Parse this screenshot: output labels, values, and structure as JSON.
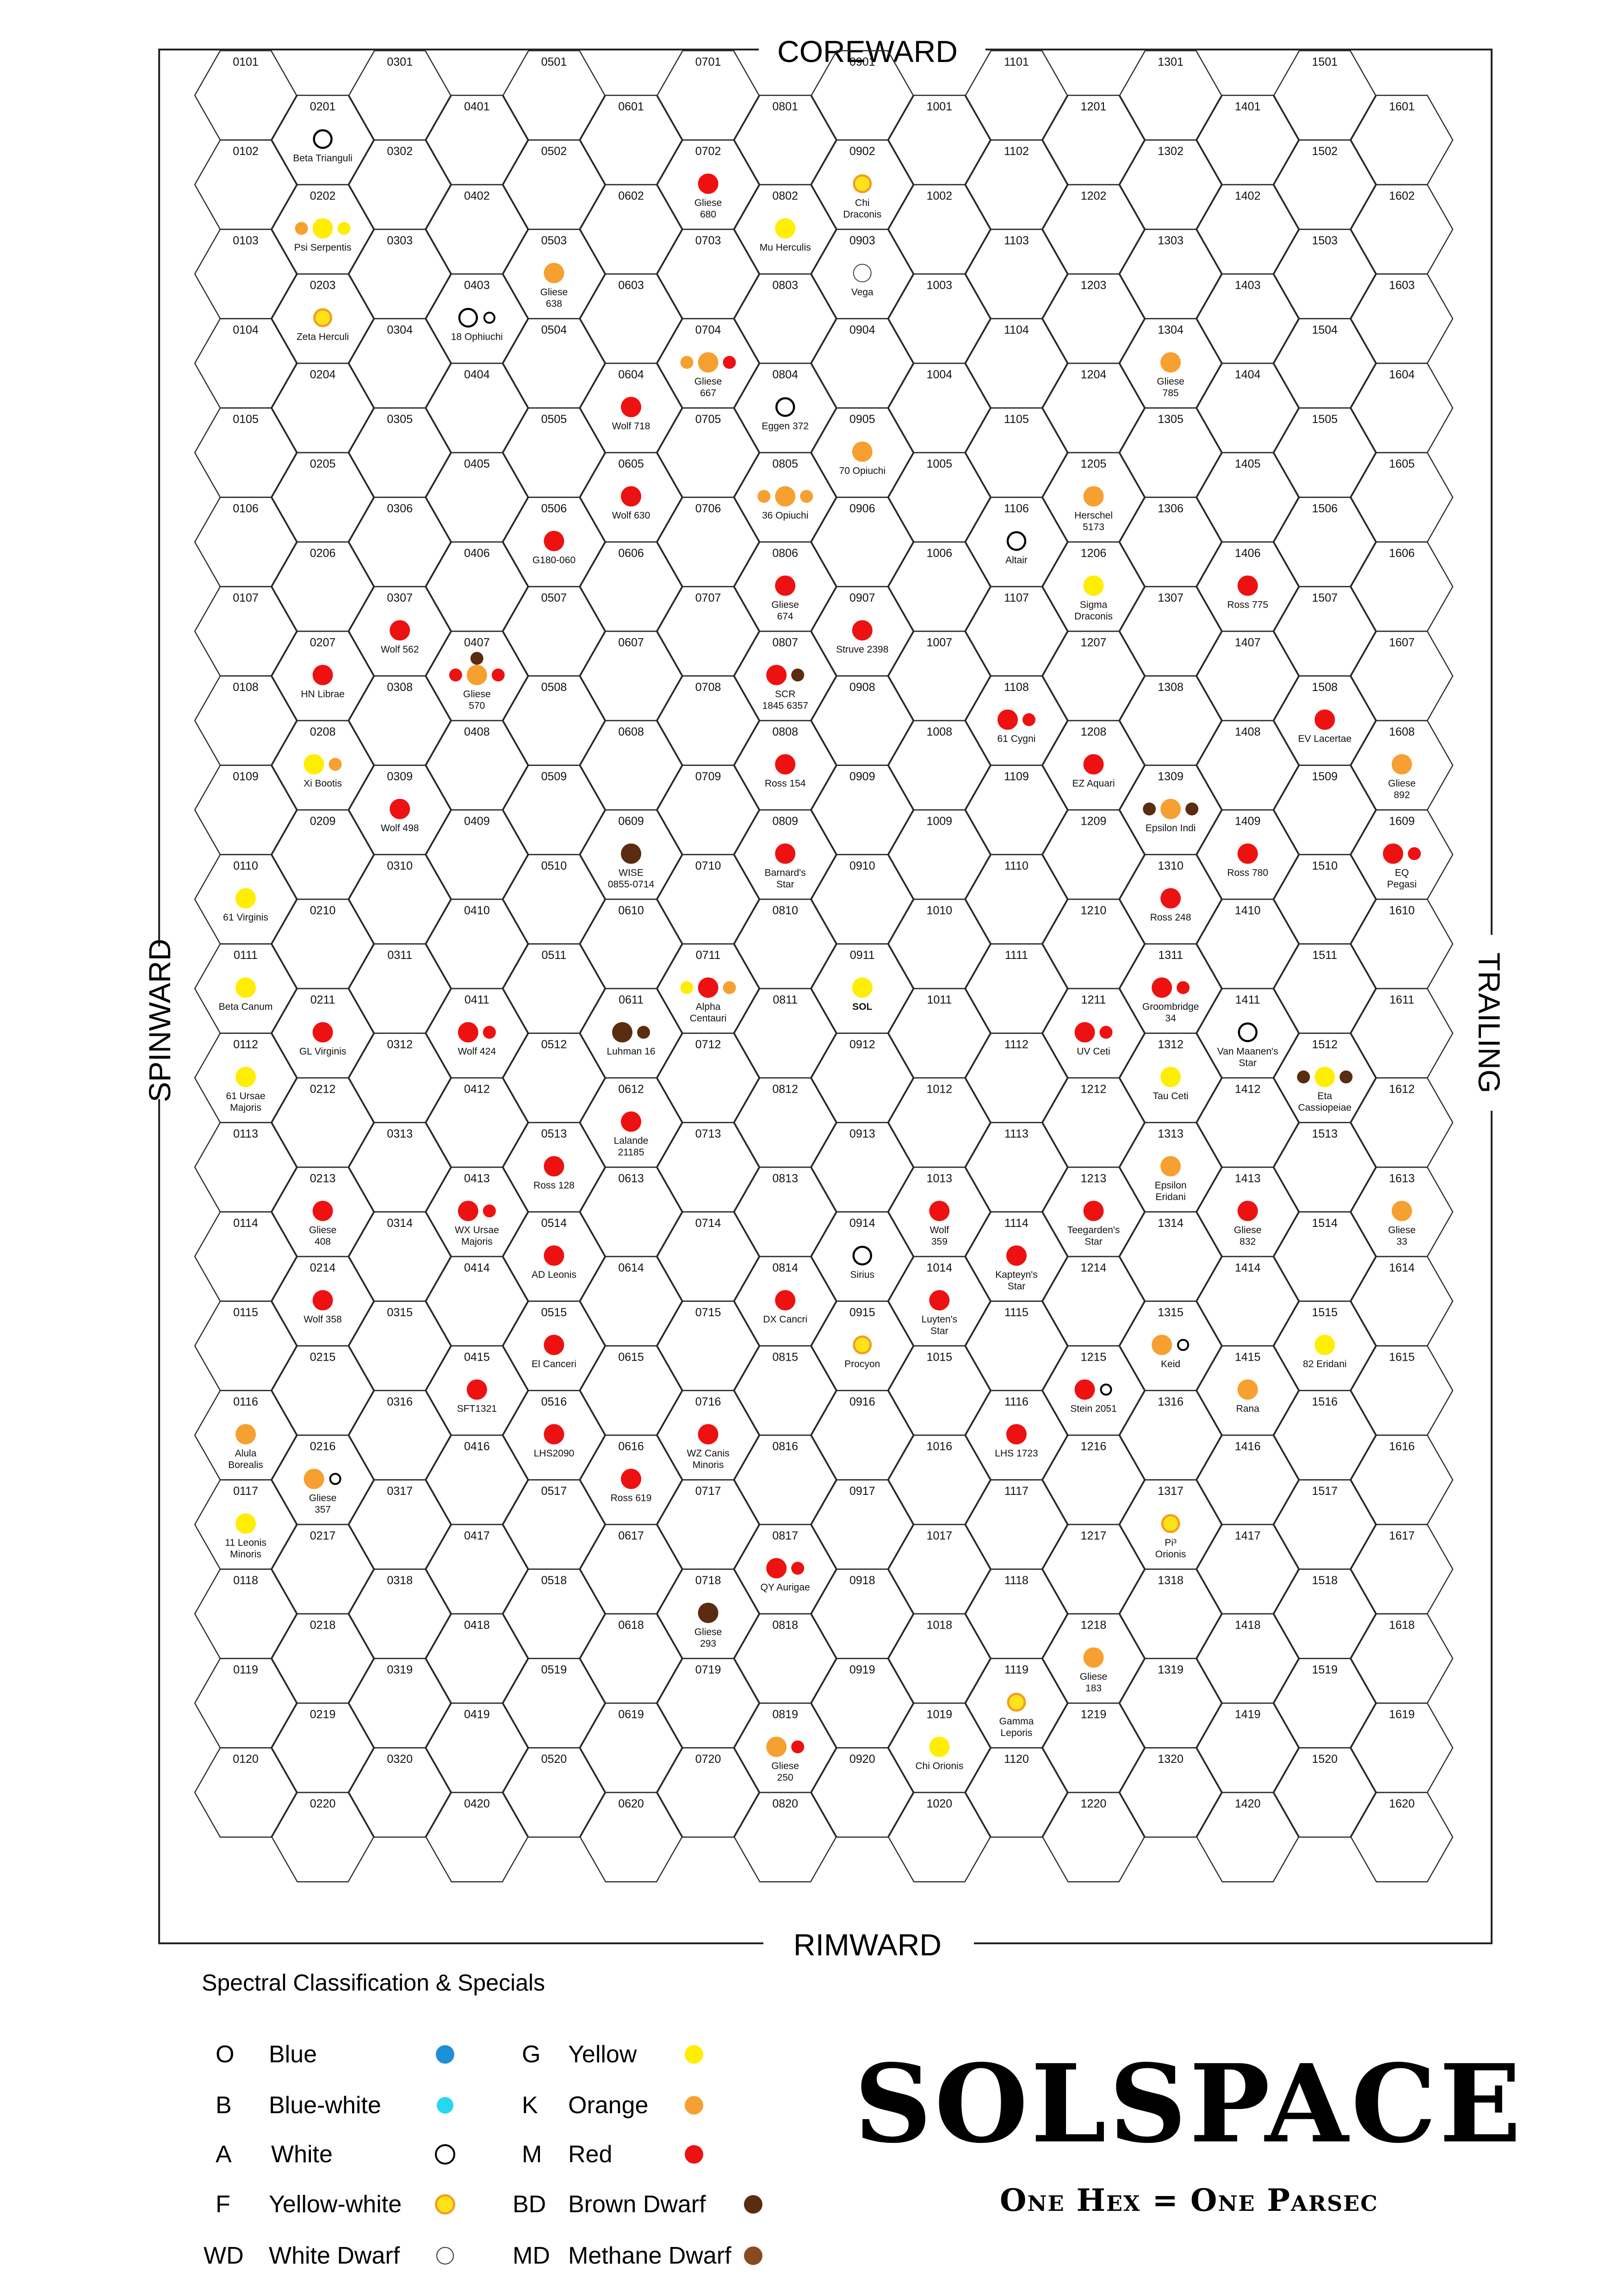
{
  "labels": {
    "coreward": "COREWARD",
    "rimward": "RIMWARD",
    "spinward": "SPINWARD",
    "trailing": "TRAILING"
  },
  "grid": {
    "cols": 16,
    "rows": 20
  },
  "stars": [
    {
      "hex": "0201",
      "name": [
        "Beta Trianguli"
      ],
      "bodies": [
        {
          "k": "A"
        }
      ]
    },
    {
      "hex": "0202",
      "name": [
        "Psi Serpentis"
      ],
      "bodies": [
        {
          "k": "K",
          "s": "s"
        },
        {
          "k": "G"
        },
        {
          "k": "G",
          "s": "s"
        }
      ]
    },
    {
      "hex": "0203",
      "name": [
        "Zeta Herculi"
      ],
      "bodies": [
        {
          "k": "F"
        }
      ]
    },
    {
      "hex": "0403",
      "name": [
        "18 Ophiuchi"
      ],
      "bodies": [
        {
          "k": "A"
        },
        {
          "k": "A",
          "s": "s"
        }
      ]
    },
    {
      "hex": "0503",
      "name": [
        "Gliese",
        "638"
      ],
      "bodies": [
        {
          "k": "K"
        }
      ]
    },
    {
      "hex": "0702",
      "name": [
        "Gliese",
        "680"
      ],
      "bodies": [
        {
          "k": "M"
        }
      ]
    },
    {
      "hex": "0802",
      "name": [
        "Mu Herculis"
      ],
      "bodies": [
        {
          "k": "G"
        }
      ]
    },
    {
      "hex": "0902",
      "name": [
        "Chi",
        "Draconis"
      ],
      "bodies": [
        {
          "k": "F"
        }
      ]
    },
    {
      "hex": "0903",
      "name": [
        "Vega"
      ],
      "bodies": [
        {
          "k": "WD"
        }
      ]
    },
    {
      "hex": "0704",
      "name": [
        "Gliese",
        "667"
      ],
      "bodies": [
        {
          "k": "K",
          "s": "s"
        },
        {
          "k": "K"
        },
        {
          "k": "M",
          "s": "s"
        }
      ]
    },
    {
      "hex": "0604",
      "name": [
        "Wolf 718"
      ],
      "bodies": [
        {
          "k": "M"
        }
      ]
    },
    {
      "hex": "0804",
      "name": [
        "Eggen 372"
      ],
      "bodies": [
        {
          "k": "A"
        }
      ]
    },
    {
      "hex": "0905",
      "name": [
        "70 Opiuchi"
      ],
      "bodies": [
        {
          "k": "K"
        }
      ]
    },
    {
      "hex": "0605",
      "name": [
        "Wolf 630"
      ],
      "bodies": [
        {
          "k": "M"
        }
      ]
    },
    {
      "hex": "0805",
      "name": [
        "36 Opiuchi"
      ],
      "bodies": [
        {
          "k": "K",
          "s": "s"
        },
        {
          "k": "K"
        },
        {
          "k": "K",
          "s": "s"
        }
      ]
    },
    {
      "hex": "0506",
      "name": [
        "G180-060"
      ],
      "bodies": [
        {
          "k": "M"
        }
      ]
    },
    {
      "hex": "0806",
      "name": [
        "Gliese",
        "674"
      ],
      "bodies": [
        {
          "k": "M"
        }
      ]
    },
    {
      "hex": "0907",
      "name": [
        "Struve 2398"
      ],
      "bodies": [
        {
          "k": "M"
        }
      ]
    },
    {
      "hex": "0307",
      "name": [
        "Wolf 562"
      ],
      "bodies": [
        {
          "k": "M"
        }
      ]
    },
    {
      "hex": "0207",
      "name": [
        "HN Librae"
      ],
      "bodies": [
        {
          "k": "M"
        }
      ]
    },
    {
      "hex": "0407",
      "name": [
        "Gliese",
        "570"
      ],
      "bodies": [
        {
          "k": "M",
          "s": "s"
        },
        {
          "k": "K"
        },
        {
          "k": "M",
          "s": "s"
        },
        {
          "k": "BD",
          "s": "s",
          "up": true
        }
      ]
    },
    {
      "hex": "0807",
      "name": [
        "SCR",
        "1845 6357"
      ],
      "bodies": [
        {
          "k": "M"
        },
        {
          "k": "BD",
          "s": "s"
        }
      ]
    },
    {
      "hex": "0208",
      "name": [
        "Xi Bootis"
      ],
      "bodies": [
        {
          "k": "G"
        },
        {
          "k": "K",
          "s": "s"
        }
      ]
    },
    {
      "hex": "0808",
      "name": [
        "Ross 154"
      ],
      "bodies": [
        {
          "k": "M"
        }
      ]
    },
    {
      "hex": "0309",
      "name": [
        "Wolf 498"
      ],
      "bodies": [
        {
          "k": "M"
        }
      ]
    },
    {
      "hex": "0609",
      "name": [
        "WISE",
        "0855-0714"
      ],
      "bodies": [
        {
          "k": "BD"
        }
      ]
    },
    {
      "hex": "0809",
      "name": [
        "Barnard's",
        "Star"
      ],
      "bodies": [
        {
          "k": "M"
        }
      ]
    },
    {
      "hex": "1106",
      "name": [
        "Altair"
      ],
      "bodies": [
        {
          "k": "A"
        }
      ]
    },
    {
      "hex": "1205",
      "name": [
        "Herschel",
        "5173"
      ],
      "bodies": [
        {
          "k": "K"
        }
      ]
    },
    {
      "hex": "1206",
      "name": [
        "Sigma",
        "Draconis"
      ],
      "bodies": [
        {
          "k": "G"
        }
      ]
    },
    {
      "hex": "1304",
      "name": [
        "Gliese",
        "785"
      ],
      "bodies": [
        {
          "k": "K"
        }
      ]
    },
    {
      "hex": "1406",
      "name": [
        "Ross 775"
      ],
      "bodies": [
        {
          "k": "M"
        }
      ]
    },
    {
      "hex": "1108",
      "name": [
        "61 Cygni"
      ],
      "bodies": [
        {
          "k": "M"
        },
        {
          "k": "M",
          "s": "s"
        }
      ]
    },
    {
      "hex": "1208",
      "name": [
        "EZ Aquari"
      ],
      "bodies": [
        {
          "k": "M"
        }
      ]
    },
    {
      "hex": "1309",
      "name": [
        "Epsilon Indi"
      ],
      "bodies": [
        {
          "k": "BD",
          "s": "s"
        },
        {
          "k": "K"
        },
        {
          "k": "BD",
          "s": "s"
        }
      ]
    },
    {
      "hex": "1508",
      "name": [
        "EV Lacertae"
      ],
      "bodies": [
        {
          "k": "M"
        }
      ]
    },
    {
      "hex": "1608",
      "name": [
        "Gliese",
        "892"
      ],
      "bodies": [
        {
          "k": "K"
        }
      ]
    },
    {
      "hex": "1409",
      "name": [
        "Ross 780"
      ],
      "bodies": [
        {
          "k": "M"
        }
      ]
    },
    {
      "hex": "1609",
      "name": [
        "EQ",
        "Pegasi"
      ],
      "bodies": [
        {
          "k": "M"
        },
        {
          "k": "M",
          "s": "s"
        }
      ]
    },
    {
      "hex": "1310",
      "name": [
        "Ross 248"
      ],
      "bodies": [
        {
          "k": "M"
        }
      ]
    },
    {
      "hex": "0110",
      "name": [
        "61 Virginis"
      ],
      "bodies": [
        {
          "k": "G"
        }
      ]
    },
    {
      "hex": "0111",
      "name": [
        "Beta Canum"
      ],
      "bodies": [
        {
          "k": "G"
        }
      ]
    },
    {
      "hex": "0211",
      "name": [
        "GL Virginis"
      ],
      "bodies": [
        {
          "k": "M"
        }
      ]
    },
    {
      "hex": "0112",
      "name": [
        "61 Ursae",
        "Majoris"
      ],
      "bodies": [
        {
          "k": "G"
        }
      ]
    },
    {
      "hex": "0411",
      "name": [
        "Wolf 424"
      ],
      "bodies": [
        {
          "k": "M"
        },
        {
          "k": "M",
          "s": "s"
        }
      ]
    },
    {
      "hex": "0611",
      "name": [
        "Luhman 16"
      ],
      "bodies": [
        {
          "k": "BD"
        },
        {
          "k": "BD",
          "s": "s"
        }
      ]
    },
    {
      "hex": "0711",
      "name": [
        "Alpha",
        "Centauri"
      ],
      "bodies": [
        {
          "k": "G",
          "s": "s"
        },
        {
          "k": "M"
        },
        {
          "k": "K",
          "s": "s"
        }
      ]
    },
    {
      "hex": "0911",
      "name": [
        "SOL"
      ],
      "bold": true,
      "bodies": [
        {
          "k": "G"
        }
      ]
    },
    {
      "hex": "1211",
      "name": [
        "UV Ceti"
      ],
      "bodies": [
        {
          "k": "M"
        },
        {
          "k": "M",
          "s": "s"
        }
      ]
    },
    {
      "hex": "1311",
      "name": [
        "Groombridge",
        "34"
      ],
      "bodies": [
        {
          "k": "M"
        },
        {
          "k": "M",
          "s": "s"
        }
      ]
    },
    {
      "hex": "1411",
      "name": [
        "Van Maanen's",
        "Star"
      ],
      "bodies": [
        {
          "k": "A"
        }
      ]
    },
    {
      "hex": "1312",
      "name": [
        "Tau Ceti"
      ],
      "bodies": [
        {
          "k": "G"
        }
      ]
    },
    {
      "hex": "1512",
      "name": [
        "Eta",
        "Cassiopeiae"
      ],
      "bodies": [
        {
          "k": "BD",
          "s": "s"
        },
        {
          "k": "G"
        },
        {
          "k": "BD",
          "s": "s"
        }
      ]
    },
    {
      "hex": "0612",
      "name": [
        "Lalande",
        "21185"
      ],
      "bodies": [
        {
          "k": "M"
        }
      ]
    },
    {
      "hex": "0513",
      "name": [
        "Ross 128"
      ],
      "bodies": [
        {
          "k": "M"
        }
      ]
    },
    {
      "hex": "0413",
      "name": [
        "WX Ursae",
        "Majoris"
      ],
      "bodies": [
        {
          "k": "M"
        },
        {
          "k": "M",
          "s": "s"
        }
      ]
    },
    {
      "hex": "0213",
      "name": [
        "Gliese",
        "408"
      ],
      "bodies": [
        {
          "k": "M"
        }
      ]
    },
    {
      "hex": "0514",
      "name": [
        "AD Leonis"
      ],
      "bodies": [
        {
          "k": "M"
        }
      ]
    },
    {
      "hex": "1313",
      "name": [
        "Epsilon",
        "Eridani"
      ],
      "bodies": [
        {
          "k": "K"
        }
      ]
    },
    {
      "hex": "1213",
      "name": [
        "Teegarden's",
        "Star"
      ],
      "bodies": [
        {
          "k": "M"
        }
      ]
    },
    {
      "hex": "1413",
      "name": [
        "Gliese",
        "832"
      ],
      "bodies": [
        {
          "k": "M"
        }
      ]
    },
    {
      "hex": "1613",
      "name": [
        "Gliese",
        "33"
      ],
      "bodies": [
        {
          "k": "K"
        }
      ]
    },
    {
      "hex": "1013",
      "name": [
        "Wolf",
        "359"
      ],
      "bodies": [
        {
          "k": "M"
        }
      ]
    },
    {
      "hex": "0914",
      "name": [
        "Sirius"
      ],
      "bodies": [
        {
          "k": "A"
        }
      ]
    },
    {
      "hex": "1114",
      "name": [
        "Kapteyn's",
        "Star"
      ],
      "bodies": [
        {
          "k": "M"
        }
      ]
    },
    {
      "hex": "1014",
      "name": [
        "Luyten's",
        "Star"
      ],
      "bodies": [
        {
          "k": "M"
        }
      ]
    },
    {
      "hex": "0214",
      "name": [
        "Wolf 358"
      ],
      "bodies": [
        {
          "k": "M"
        }
      ]
    },
    {
      "hex": "0814",
      "name": [
        "DX Cancri"
      ],
      "bodies": [
        {
          "k": "M"
        }
      ]
    },
    {
      "hex": "0915",
      "name": [
        "Procyon"
      ],
      "bodies": [
        {
          "k": "F"
        }
      ]
    },
    {
      "hex": "0515",
      "name": [
        "El Canceri"
      ],
      "bodies": [
        {
          "k": "M"
        }
      ]
    },
    {
      "hex": "1315",
      "name": [
        "Keid"
      ],
      "bodies": [
        {
          "k": "K"
        },
        {
          "k": "A",
          "s": "s"
        }
      ]
    },
    {
      "hex": "1515",
      "name": [
        "82 Eridani"
      ],
      "bodies": [
        {
          "k": "G"
        }
      ]
    },
    {
      "hex": "1215",
      "name": [
        "Stein 2051"
      ],
      "bodies": [
        {
          "k": "M"
        },
        {
          "k": "A",
          "s": "s"
        }
      ]
    },
    {
      "hex": "1415",
      "name": [
        "Rana"
      ],
      "bodies": [
        {
          "k": "K"
        }
      ]
    },
    {
      "hex": "0415",
      "name": [
        "SFT1321"
      ],
      "bodies": [
        {
          "k": "M"
        }
      ]
    },
    {
      "hex": "0516",
      "name": [
        "LHS2090"
      ],
      "bodies": [
        {
          "k": "M"
        }
      ]
    },
    {
      "hex": "0716",
      "name": [
        "WZ Canis",
        "Minoris"
      ],
      "bodies": [
        {
          "k": "M"
        }
      ]
    },
    {
      "hex": "1116",
      "name": [
        "LHS 1723"
      ],
      "bodies": [
        {
          "k": "M"
        }
      ]
    },
    {
      "hex": "0116",
      "name": [
        "Alula",
        "Borealis"
      ],
      "bodies": [
        {
          "k": "K"
        }
      ]
    },
    {
      "hex": "0216",
      "name": [
        "Gliese",
        "357"
      ],
      "bodies": [
        {
          "k": "K"
        },
        {
          "k": "A",
          "s": "s"
        }
      ]
    },
    {
      "hex": "0616",
      "name": [
        "Ross 619"
      ],
      "bodies": [
        {
          "k": "M"
        }
      ]
    },
    {
      "hex": "0117",
      "name": [
        "11 Leonis",
        "Minoris"
      ],
      "bodies": [
        {
          "k": "G"
        }
      ]
    },
    {
      "hex": "1317",
      "name": [
        "Pi³",
        "Orionis"
      ],
      "bodies": [
        {
          "k": "F"
        }
      ]
    },
    {
      "hex": "0817",
      "name": [
        "QY Aurigae"
      ],
      "bodies": [
        {
          "k": "M"
        },
        {
          "k": "M",
          "s": "s"
        }
      ]
    },
    {
      "hex": "0718",
      "name": [
        "Gliese",
        "293"
      ],
      "bodies": [
        {
          "k": "BD"
        }
      ]
    },
    {
      "hex": "1218",
      "name": [
        "Gliese",
        "183"
      ],
      "bodies": [
        {
          "k": "K"
        }
      ]
    },
    {
      "hex": "1119",
      "name": [
        "Gamma",
        "Leporis"
      ],
      "bodies": [
        {
          "k": "F"
        }
      ]
    },
    {
      "hex": "0819",
      "name": [
        "Gliese",
        "250"
      ],
      "bodies": [
        {
          "k": "K"
        },
        {
          "k": "M",
          "s": "s"
        }
      ]
    },
    {
      "hex": "1019",
      "name": [
        "Chi Orionis"
      ],
      "bodies": [
        {
          "k": "G"
        }
      ]
    }
  ],
  "legend": {
    "title": "Spectral Classification & Specials",
    "left": [
      {
        "code": "O",
        "name": "Blue",
        "k": "O"
      },
      {
        "code": "B",
        "name": "Blue-white",
        "k": "B"
      },
      {
        "code": "A",
        "name": "White",
        "k": "A"
      },
      {
        "code": "F",
        "name": "Yellow-white",
        "k": "F"
      },
      {
        "code": "WD",
        "name": "White Dwarf",
        "k": "WD"
      }
    ],
    "right": [
      {
        "code": "G",
        "name": "Yellow",
        "k": "G"
      },
      {
        "code": "K",
        "name": "Orange",
        "k": "K"
      },
      {
        "code": "M",
        "name": "Red",
        "k": "M"
      },
      {
        "code": "BD",
        "name": "Brown Dwarf",
        "k": "BD"
      },
      {
        "code": "MD",
        "name": "Methane Dwarf",
        "k": "MD"
      }
    ]
  },
  "colors": {
    "O": "#1f8fd6",
    "B": "#25d8f0",
    "G": "#ffee00",
    "K": "#f5a030",
    "M": "#ee1111",
    "BD": "#5a2c10",
    "MD": "#8a4a20",
    "F": "#ffe21a",
    "F_ring": "#f0a020"
  },
  "title": {
    "main": "SOLSPACE",
    "sub": "One Hex = One Parsec"
  }
}
